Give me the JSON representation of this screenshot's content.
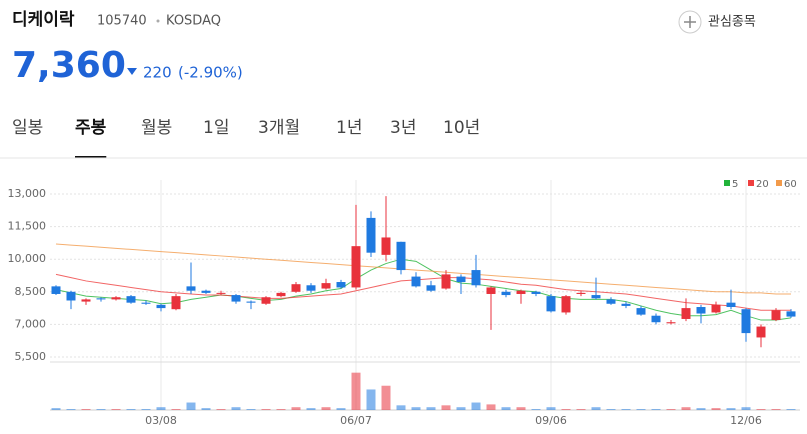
{
  "header": {
    "name": "디케이락",
    "code": "105740",
    "market": "KOSDAQ",
    "watch": "관심종목"
  },
  "price": {
    "value": "7,360",
    "change": "220",
    "change_pct": "(-2.90%)"
  },
  "tabs": {
    "items": [
      "일봉",
      "주봉",
      "월봉",
      "1일",
      "3개월",
      "1년",
      "3년",
      "10년"
    ],
    "active": 1
  },
  "chart_data": {
    "type": "candlestick",
    "categories": [
      null,
      null,
      null,
      null,
      null,
      null,
      null,
      "03/08",
      null,
      null,
      null,
      null,
      null,
      null,
      null,
      null,
      null,
      null,
      null,
      null,
      "06/07",
      null,
      null,
      null,
      null,
      null,
      null,
      null,
      null,
      null,
      null,
      null,
      null,
      "09/06",
      null,
      null,
      null,
      null,
      null,
      null,
      null,
      null,
      null,
      null,
      null,
      null,
      "12/06",
      null,
      null,
      null
    ],
    "open": [
      8750,
      8500,
      8050,
      8200,
      8150,
      8300,
      8000,
      7900,
      7700,
      8750,
      8550,
      8450,
      8350,
      8050,
      7950,
      8300,
      8500,
      8800,
      8650,
      8950,
      8700,
      11900,
      10200,
      10800,
      9200,
      8800,
      8650,
      9200,
      9500,
      8400,
      8500,
      8400,
      8500,
      8300,
      7550,
      8400,
      8350,
      8150,
      7950,
      7750,
      7400,
      7050,
      7250,
      7800,
      7550,
      8000,
      7700,
      6400,
      7200,
      7600
    ],
    "high": [
      8800,
      8550,
      8200,
      8250,
      8300,
      8350,
      8100,
      7950,
      8400,
      9850,
      8600,
      8550,
      8400,
      8100,
      8300,
      8500,
      8950,
      8900,
      9100,
      9050,
      12500,
      12200,
      12900,
      10800,
      9400,
      9000,
      9500,
      9300,
      10200,
      8750,
      8600,
      8600,
      8550,
      8400,
      8350,
      8550,
      9150,
      8250,
      8050,
      7850,
      7500,
      7200,
      8200,
      7900,
      8050,
      8600,
      7750,
      7000,
      7750,
      7700
    ],
    "low": [
      8350,
      7700,
      7900,
      8050,
      8100,
      7950,
      7900,
      7600,
      7650,
      8400,
      8400,
      8350,
      7950,
      7700,
      7900,
      8250,
      8450,
      8450,
      8600,
      8650,
      8600,
      10100,
      9900,
      9300,
      8700,
      8500,
      8600,
      8400,
      8700,
      6750,
      8250,
      7950,
      8300,
      7550,
      7450,
      8300,
      8150,
      7900,
      7750,
      7400,
      7000,
      7000,
      7150,
      7050,
      7500,
      7700,
      6200,
      5950,
      7150,
      7300
    ],
    "close": [
      8400,
      8100,
      8150,
      8150,
      8250,
      8000,
      7950,
      7750,
      8300,
      8550,
      8450,
      8450,
      8050,
      8000,
      8250,
      8450,
      8850,
      8550,
      8900,
      8700,
      10600,
      10300,
      11000,
      9500,
      8750,
      8550,
      9300,
      8950,
      8800,
      8700,
      8350,
      8550,
      8400,
      7600,
      8300,
      8450,
      8200,
      7950,
      7850,
      7450,
      7100,
      7100,
      7750,
      7500,
      7900,
      7800,
      6600,
      6900,
      7650,
      7360
    ],
    "volume": [
      2,
      1,
      1,
      1,
      1,
      1,
      1,
      3,
      1,
      8,
      2,
      1,
      3,
      1,
      1,
      1,
      3,
      2,
      3,
      2,
      40,
      22,
      26,
      5,
      3,
      3,
      5,
      3,
      8,
      6,
      3,
      3,
      1,
      3,
      1,
      1,
      3,
      1,
      1,
      1,
      1,
      1,
      3,
      2,
      2,
      2,
      3,
      1,
      1,
      1
    ],
    "vlim": [
      0,
      45
    ],
    "ma": [
      {
        "name": "5",
        "color": "#22b33a",
        "values": [
          8600,
          8450,
          8300,
          8250,
          8200,
          8150,
          8100,
          7950,
          8000,
          8150,
          8250,
          8350,
          8300,
          8200,
          8100,
          8150,
          8300,
          8400,
          8550,
          8650,
          9100,
          9500,
          9800,
          10000,
          9900,
          9500,
          9100,
          8900,
          8850,
          8750,
          8650,
          8550,
          8500,
          8300,
          8200,
          8150,
          8150,
          8150,
          8050,
          7850,
          7650,
          7500,
          7400,
          7400,
          7450,
          7650,
          7400,
          7200,
          7200,
          7300
        ]
      },
      {
        "name": "20",
        "color": "#ef3f3f",
        "values": [
          9300,
          9150,
          9000,
          8900,
          8800,
          8700,
          8600,
          8500,
          8450,
          8400,
          8350,
          8350,
          8300,
          8250,
          8200,
          8200,
          8250,
          8300,
          8350,
          8400,
          8550,
          8700,
          8850,
          9000,
          9050,
          9100,
          9150,
          9150,
          9100,
          9050,
          8950,
          8850,
          8800,
          8700,
          8600,
          8550,
          8500,
          8450,
          8400,
          8300,
          8200,
          8100,
          8000,
          7950,
          7900,
          7850,
          7750,
          7650,
          7650,
          7650
        ]
      },
      {
        "name": "60",
        "color": "#f29a4a",
        "values": [
          10700,
          10650,
          10600,
          10550,
          10500,
          10450,
          10400,
          10350,
          10300,
          10250,
          10200,
          10150,
          10100,
          10050,
          10000,
          9950,
          9900,
          9850,
          9800,
          9750,
          9700,
          9650,
          9600,
          9550,
          9500,
          9450,
          9400,
          9350,
          9300,
          9250,
          9200,
          9150,
          9100,
          9050,
          9000,
          8950,
          8900,
          8850,
          8800,
          8750,
          8700,
          8650,
          8600,
          8550,
          8500,
          8500,
          8450,
          8450,
          8400,
          8400
        ]
      }
    ],
    "ylim": [
      5270,
      13644
    ],
    "yticks": [
      {
        "value": 5500,
        "label": "5,500"
      },
      {
        "value": 7000,
        "label": "7,000"
      },
      {
        "value": 8500,
        "label": "8,500"
      },
      {
        "value": 10000,
        "label": "10,000"
      },
      {
        "value": 11500,
        "label": "11,500"
      },
      {
        "value": 13000,
        "label": "13,000"
      }
    ],
    "up_color": "#e8323c",
    "down_color": "#1f7ae0",
    "grid": true
  }
}
